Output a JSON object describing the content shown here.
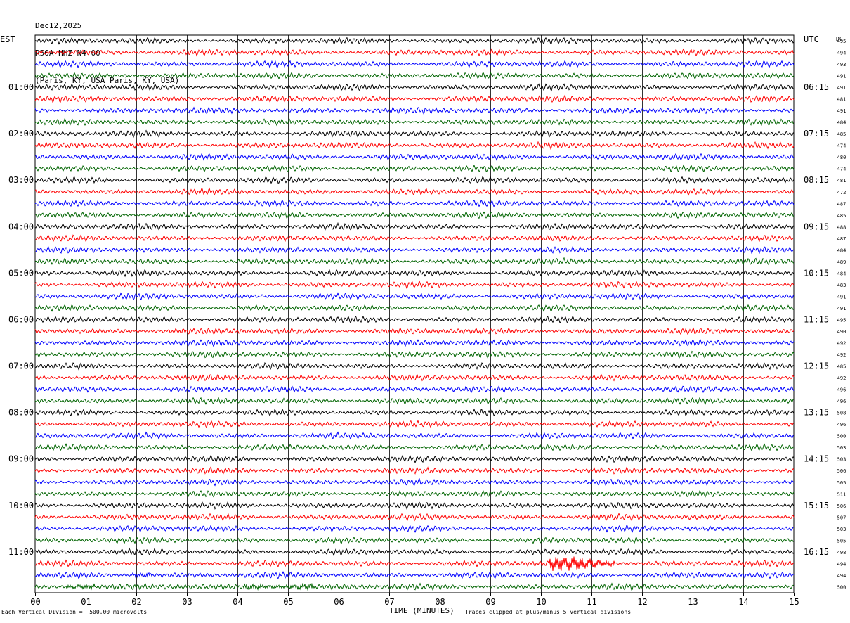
{
  "header": {
    "date": "Dec12,2025",
    "station": "R50A HHZ N4 00",
    "location": "(Paris, KY, USA Paris, KY, USA)"
  },
  "chart_data": {
    "type": "line",
    "title": "",
    "left_timezone": "EST",
    "right_timezone": "UTC",
    "dc_header": "DC",
    "xlabel": "TIME (MINUTES)",
    "xlim": [
      0,
      15
    ],
    "x_ticks": [
      "00",
      "01",
      "02",
      "03",
      "04",
      "05",
      "06",
      "07",
      "08",
      "09",
      "10",
      "11",
      "12",
      "13",
      "14",
      "15"
    ],
    "trace_colors": [
      "#000000",
      "#ff0000",
      "#0000ff",
      "#006400"
    ],
    "left_hour_labels": [
      "01:00",
      "02:00",
      "03:00",
      "04:00",
      "05:00",
      "06:00",
      "07:00",
      "08:00",
      "09:00",
      "10:00",
      "11:00"
    ],
    "right_hour_labels": [
      "06:15",
      "07:15",
      "08:15",
      "09:15",
      "10:15",
      "11:15",
      "12:15",
      "13:15",
      "14:15",
      "15:15",
      "16:15"
    ],
    "dc_offsets": [
      495,
      494,
      493,
      491,
      491,
      481,
      491,
      484,
      485,
      474,
      480,
      474,
      481,
      472,
      487,
      485,
      488,
      487,
      484,
      489,
      484,
      483,
      491,
      491,
      495,
      490,
      492,
      492,
      485,
      492,
      496,
      496,
      508,
      496,
      500,
      503,
      503,
      506,
      505,
      511,
      506,
      507,
      503,
      505,
      498,
      494,
      494,
      500
    ],
    "traces_per_hour": 4,
    "minutes_per_trace": 15,
    "scale_note": "Each Vertical Division =  500.00 microvolts",
    "clip_note": "Traces clipped at plus/minus 5 vertical divisions",
    "events": [
      {
        "trace": 45,
        "start_min": 10.15,
        "end_min": 11.45,
        "note": "larger amplitude burst"
      },
      {
        "trace": 46,
        "start_min": 1.9,
        "end_min": 2.3
      },
      {
        "trace": 47,
        "start_min": 0.6,
        "end_min": 1.2
      },
      {
        "trace": 47,
        "start_min": 4.1,
        "end_min": 5.5
      }
    ]
  },
  "footer": {
    "scale_note": "Each Vertical Division =  500.00 microvolts",
    "xlabel": "TIME (MINUTES)",
    "clip_note": "Traces clipped at plus/minus 5 vertical divisions"
  }
}
